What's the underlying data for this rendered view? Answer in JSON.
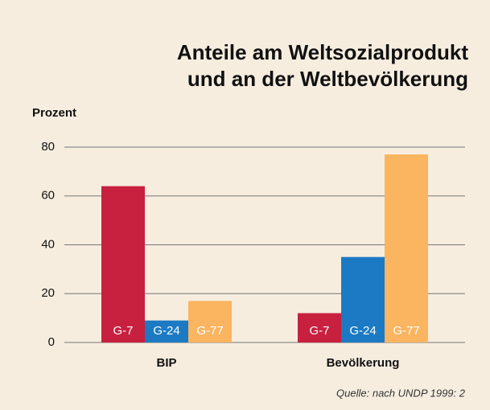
{
  "chart_data": {
    "type": "bar",
    "title": [
      "Anteile am Weltsozialprodukt",
      "und an der Weltbevölkerung"
    ],
    "y_label": "Prozent",
    "categories": [
      "BIP",
      "Bevölkerung"
    ],
    "series": [
      {
        "name": "G-7",
        "color": "#c8203f",
        "values": [
          64,
          12
        ]
      },
      {
        "name": "G-24",
        "color": "#1b7ac3",
        "values": [
          9,
          35
        ]
      },
      {
        "name": "G-77",
        "color": "#fbb45f",
        "values": [
          17,
          77
        ]
      }
    ],
    "ylim": [
      0,
      80
    ],
    "yticks": [
      0,
      20,
      40,
      60,
      80
    ],
    "grid": true,
    "source": "Quelle: nach UNDP 1999: 2"
  }
}
